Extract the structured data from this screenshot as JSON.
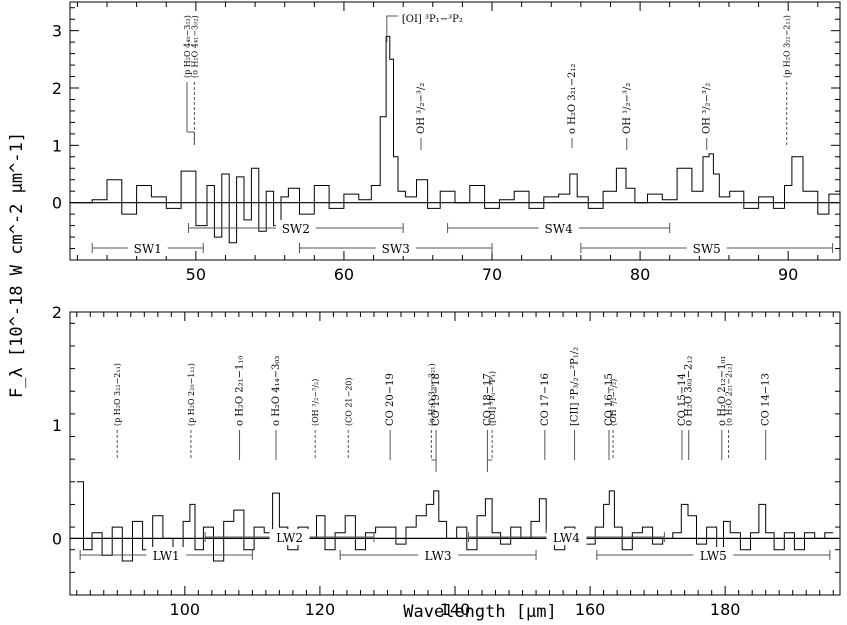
{
  "chart_data": {
    "type": "line",
    "ylabel": "F_λ [10^-18 W cm^-2 μm^-1]",
    "xlabel": "Wavelength [μm]",
    "panels": [
      {
        "id": "top",
        "xlim": [
          41.5,
          93.5
        ],
        "ylim": [
          -1.0,
          3.5
        ],
        "xticks": [
          50,
          60,
          70,
          80,
          90
        ],
        "yticks": [
          0,
          1,
          2,
          3
        ],
        "series": [
          {
            "x": [
              42.5,
              43.5,
              44.5,
              45.5,
              46.5,
              47.5,
              48.5,
              49.5,
              50.5,
              51.0,
              51.5,
              52.0,
              52.5,
              53.0,
              53.5,
              54.0,
              54.5,
              55.0,
              55.5,
              56.0,
              56.5,
              57.5,
              58.5,
              59.5,
              60.5,
              61.5,
              62.2,
              62.7,
              63.0,
              63.2,
              63.5,
              63.8,
              64.5,
              65.3,
              66.0,
              67.0,
              68.0,
              69.0,
              70.0,
              71.0,
              72.0,
              73.0,
              74.0,
              75.0,
              75.5,
              76.0,
              77.0,
              78.0,
              78.8,
              79.3,
              80.0,
              81.0,
              82.0,
              83.0,
              84.0,
              84.5,
              84.8,
              85.1,
              85.6,
              86.5,
              87.5,
              88.5,
              89.5,
              90.0,
              90.5,
              91.5,
              92.5,
              93.0
            ],
            "y": [
              0.0,
              0.05,
              0.4,
              -0.2,
              0.3,
              0.1,
              -0.1,
              0.55,
              -0.4,
              0.3,
              -0.6,
              0.5,
              -0.7,
              0.45,
              -0.3,
              0.6,
              -0.5,
              0.2,
              -0.4,
              0.1,
              0.25,
              -0.2,
              0.3,
              -0.1,
              0.15,
              0.05,
              0.3,
              1.5,
              2.9,
              2.5,
              0.8,
              0.2,
              0.1,
              0.4,
              -0.1,
              0.2,
              0.0,
              0.3,
              -0.1,
              0.05,
              0.2,
              -0.1,
              0.1,
              0.15,
              0.5,
              0.1,
              -0.1,
              0.2,
              0.6,
              0.25,
              0.0,
              0.15,
              0.05,
              0.6,
              0.2,
              0.8,
              0.85,
              0.5,
              0.1,
              0.2,
              -0.1,
              0.1,
              -0.1,
              0.3,
              0.8,
              0.2,
              -0.2,
              0.15
            ]
          }
        ],
        "lines": [
          {
            "x": 49.4,
            "label": "(p H₂O 4₄₀−3₅₃)",
            "style": "gray",
            "bracket_to": 49.9
          },
          {
            "x": 49.9,
            "label": "(o H₂O 4₄₁−3₅₂)",
            "style": "dash"
          },
          {
            "x": 63.1,
            "label": "[OI] ³P₁−³P₂",
            "style": "peak"
          },
          {
            "x": 65.2,
            "label": "OH ³/₂−³/₂",
            "style": "solid"
          },
          {
            "x": 75.4,
            "label": "o H₂O 3₂₁−2₁₂",
            "style": "gray"
          },
          {
            "x": 79.1,
            "label": "OH ¹/₂−³/₂",
            "style": "solid"
          },
          {
            "x": 84.5,
            "label": "OH ³/₂−³/₂",
            "style": "solid"
          },
          {
            "x": 89.9,
            "label": "(p H₂O 3₂₂−2₁₁)",
            "style": "dash"
          }
        ],
        "bands": [
          {
            "name": "SW1",
            "from": 43.0,
            "to": 50.5,
            "row": 1
          },
          {
            "name": "SW2",
            "from": 49.5,
            "to": 64.0,
            "row": 0
          },
          {
            "name": "SW3",
            "from": 57.0,
            "to": 70.0,
            "row": 1
          },
          {
            "name": "SW4",
            "from": 67.0,
            "to": 82.0,
            "row": 0
          },
          {
            "name": "SW5",
            "from": 76.0,
            "to": 93.0,
            "row": 1
          }
        ]
      },
      {
        "id": "bottom",
        "xlim": [
          83.0,
          197.0
        ],
        "ylim": [
          -0.5,
          2.0
        ],
        "xticks": [
          100,
          120,
          140,
          160,
          180
        ],
        "yticks": [
          0,
          1,
          2
        ],
        "series": [
          {
            "x": [
              84.5,
              85.5,
              87,
              88.5,
              90,
              91.5,
              93,
              94.5,
              96,
              97.5,
              99,
              100.5,
              101,
              102,
              103.5,
              105,
              106.5,
              108,
              109.5,
              111,
              112.5,
              113.5,
              114.5,
              116,
              117.5,
              119,
              120,
              121.5,
              123,
              124.5,
              126,
              127.5,
              129,
              130.5,
              132,
              133.5,
              135,
              136.5,
              137.2,
              138,
              139.5,
              141,
              142.5,
              144,
              145,
              146,
              147.5,
              149,
              150.5,
              152,
              153,
              154,
              155.5,
              157,
              158.5,
              160,
              161.5,
              162.5,
              163.2,
              164,
              165.5,
              167,
              168.5,
              170,
              171.5,
              173,
              174,
              175,
              176.5,
              178,
              179.5,
              180,
              181.5,
              183,
              184.5,
              185.5,
              186.5,
              188,
              189.5,
              191,
              192.5,
              194,
              195.5
            ],
            "y": [
              0.5,
              -0.1,
              0.05,
              -0.15,
              0.1,
              -0.2,
              0.15,
              -0.1,
              0.2,
              0.0,
              -0.1,
              0.15,
              0.3,
              -0.1,
              0.1,
              -0.2,
              0.15,
              0.25,
              -0.1,
              0.1,
              0.05,
              0.4,
              0.1,
              -0.1,
              0.1,
              0.0,
              0.2,
              -0.1,
              0.05,
              0.2,
              -0.1,
              0.05,
              0.1,
              0.1,
              -0.05,
              0.1,
              0.2,
              0.3,
              0.42,
              0.15,
              0.0,
              0.1,
              -0.1,
              0.2,
              0.35,
              0.05,
              -0.05,
              0.1,
              0.0,
              0.15,
              0.35,
              0.05,
              -0.1,
              0.1,
              0.05,
              -0.05,
              0.1,
              0.3,
              0.42,
              0.1,
              -0.1,
              0.05,
              0.1,
              -0.05,
              0.0,
              0.05,
              0.3,
              0.2,
              -0.05,
              0.1,
              -0.1,
              0.15,
              0.05,
              -0.1,
              0.05,
              0.3,
              0.05,
              -0.1,
              0.05,
              -0.1,
              0.05,
              0.0,
              0.05
            ]
          }
        ],
        "lines": [
          {
            "x": 89.99,
            "label": "(p H₂O 3₂₂−2₁₁)",
            "style": "dash"
          },
          {
            "x": 100.9,
            "label": "(p H₂O 2₂₀−1₁₁)",
            "style": "dash"
          },
          {
            "x": 108.1,
            "label": "o H₂O 2₂₁−1₁₀",
            "style": "gray"
          },
          {
            "x": 113.5,
            "label": "o H₂O 4₁₄−3₀₃",
            "style": "gray"
          },
          {
            "x": 119.3,
            "label": "(OH ³/₂−³/₂)",
            "style": "dash"
          },
          {
            "x": 124.2,
            "label": "(CO 21−20)",
            "style": "dash"
          },
          {
            "x": 130.4,
            "label": "CO 20−19",
            "style": "gray"
          },
          {
            "x": 136.5,
            "label": "(o H₂O 3₃₀−3₂₁)",
            "style": "dash",
            "bracket_to": 137.2
          },
          {
            "x": 137.2,
            "label": "CO 19−18",
            "style": "gray"
          },
          {
            "x": 144.8,
            "label": "CO 18−17",
            "style": "gray"
          },
          {
            "x": 145.5,
            "label": "([OI] ³P₀−³P₁)",
            "style": "dash",
            "bracket_to": 144.8
          },
          {
            "x": 153.3,
            "label": "CO 17−16",
            "style": "gray"
          },
          {
            "x": 157.7,
            "label": "[CII] ²P₃/₂−²P₁/₂",
            "style": "gray"
          },
          {
            "x": 162.8,
            "label": "CO 16−15",
            "style": "gray"
          },
          {
            "x": 163.4,
            "label": "(OH ¹/₂−¹/₂)",
            "style": "dash"
          },
          {
            "x": 173.6,
            "label": "CO 15−14",
            "style": "gray"
          },
          {
            "x": 174.6,
            "label": "o H₂O 3₀₃−2₁₂",
            "style": "gray"
          },
          {
            "x": 179.5,
            "label": "o H₂O 2₁₂−1₀₁",
            "style": "gray"
          },
          {
            "x": 180.5,
            "label": "(o H₂O 2₂₁−2₁₂)",
            "style": "dash"
          },
          {
            "x": 186.0,
            "label": "CO 14−13",
            "style": "gray"
          }
        ],
        "bands": [
          {
            "name": "LW1",
            "from": 84.5,
            "to": 110.0,
            "row": 1
          },
          {
            "name": "LW2",
            "from": 103.0,
            "to": 128.0,
            "row": 0
          },
          {
            "name": "LW3",
            "from": 123.0,
            "to": 152.0,
            "row": 1
          },
          {
            "name": "LW4",
            "from": 142.0,
            "to": 171.0,
            "row": 0
          },
          {
            "name": "LW5",
            "from": 161.0,
            "to": 195.5,
            "row": 1
          }
        ]
      }
    ]
  }
}
